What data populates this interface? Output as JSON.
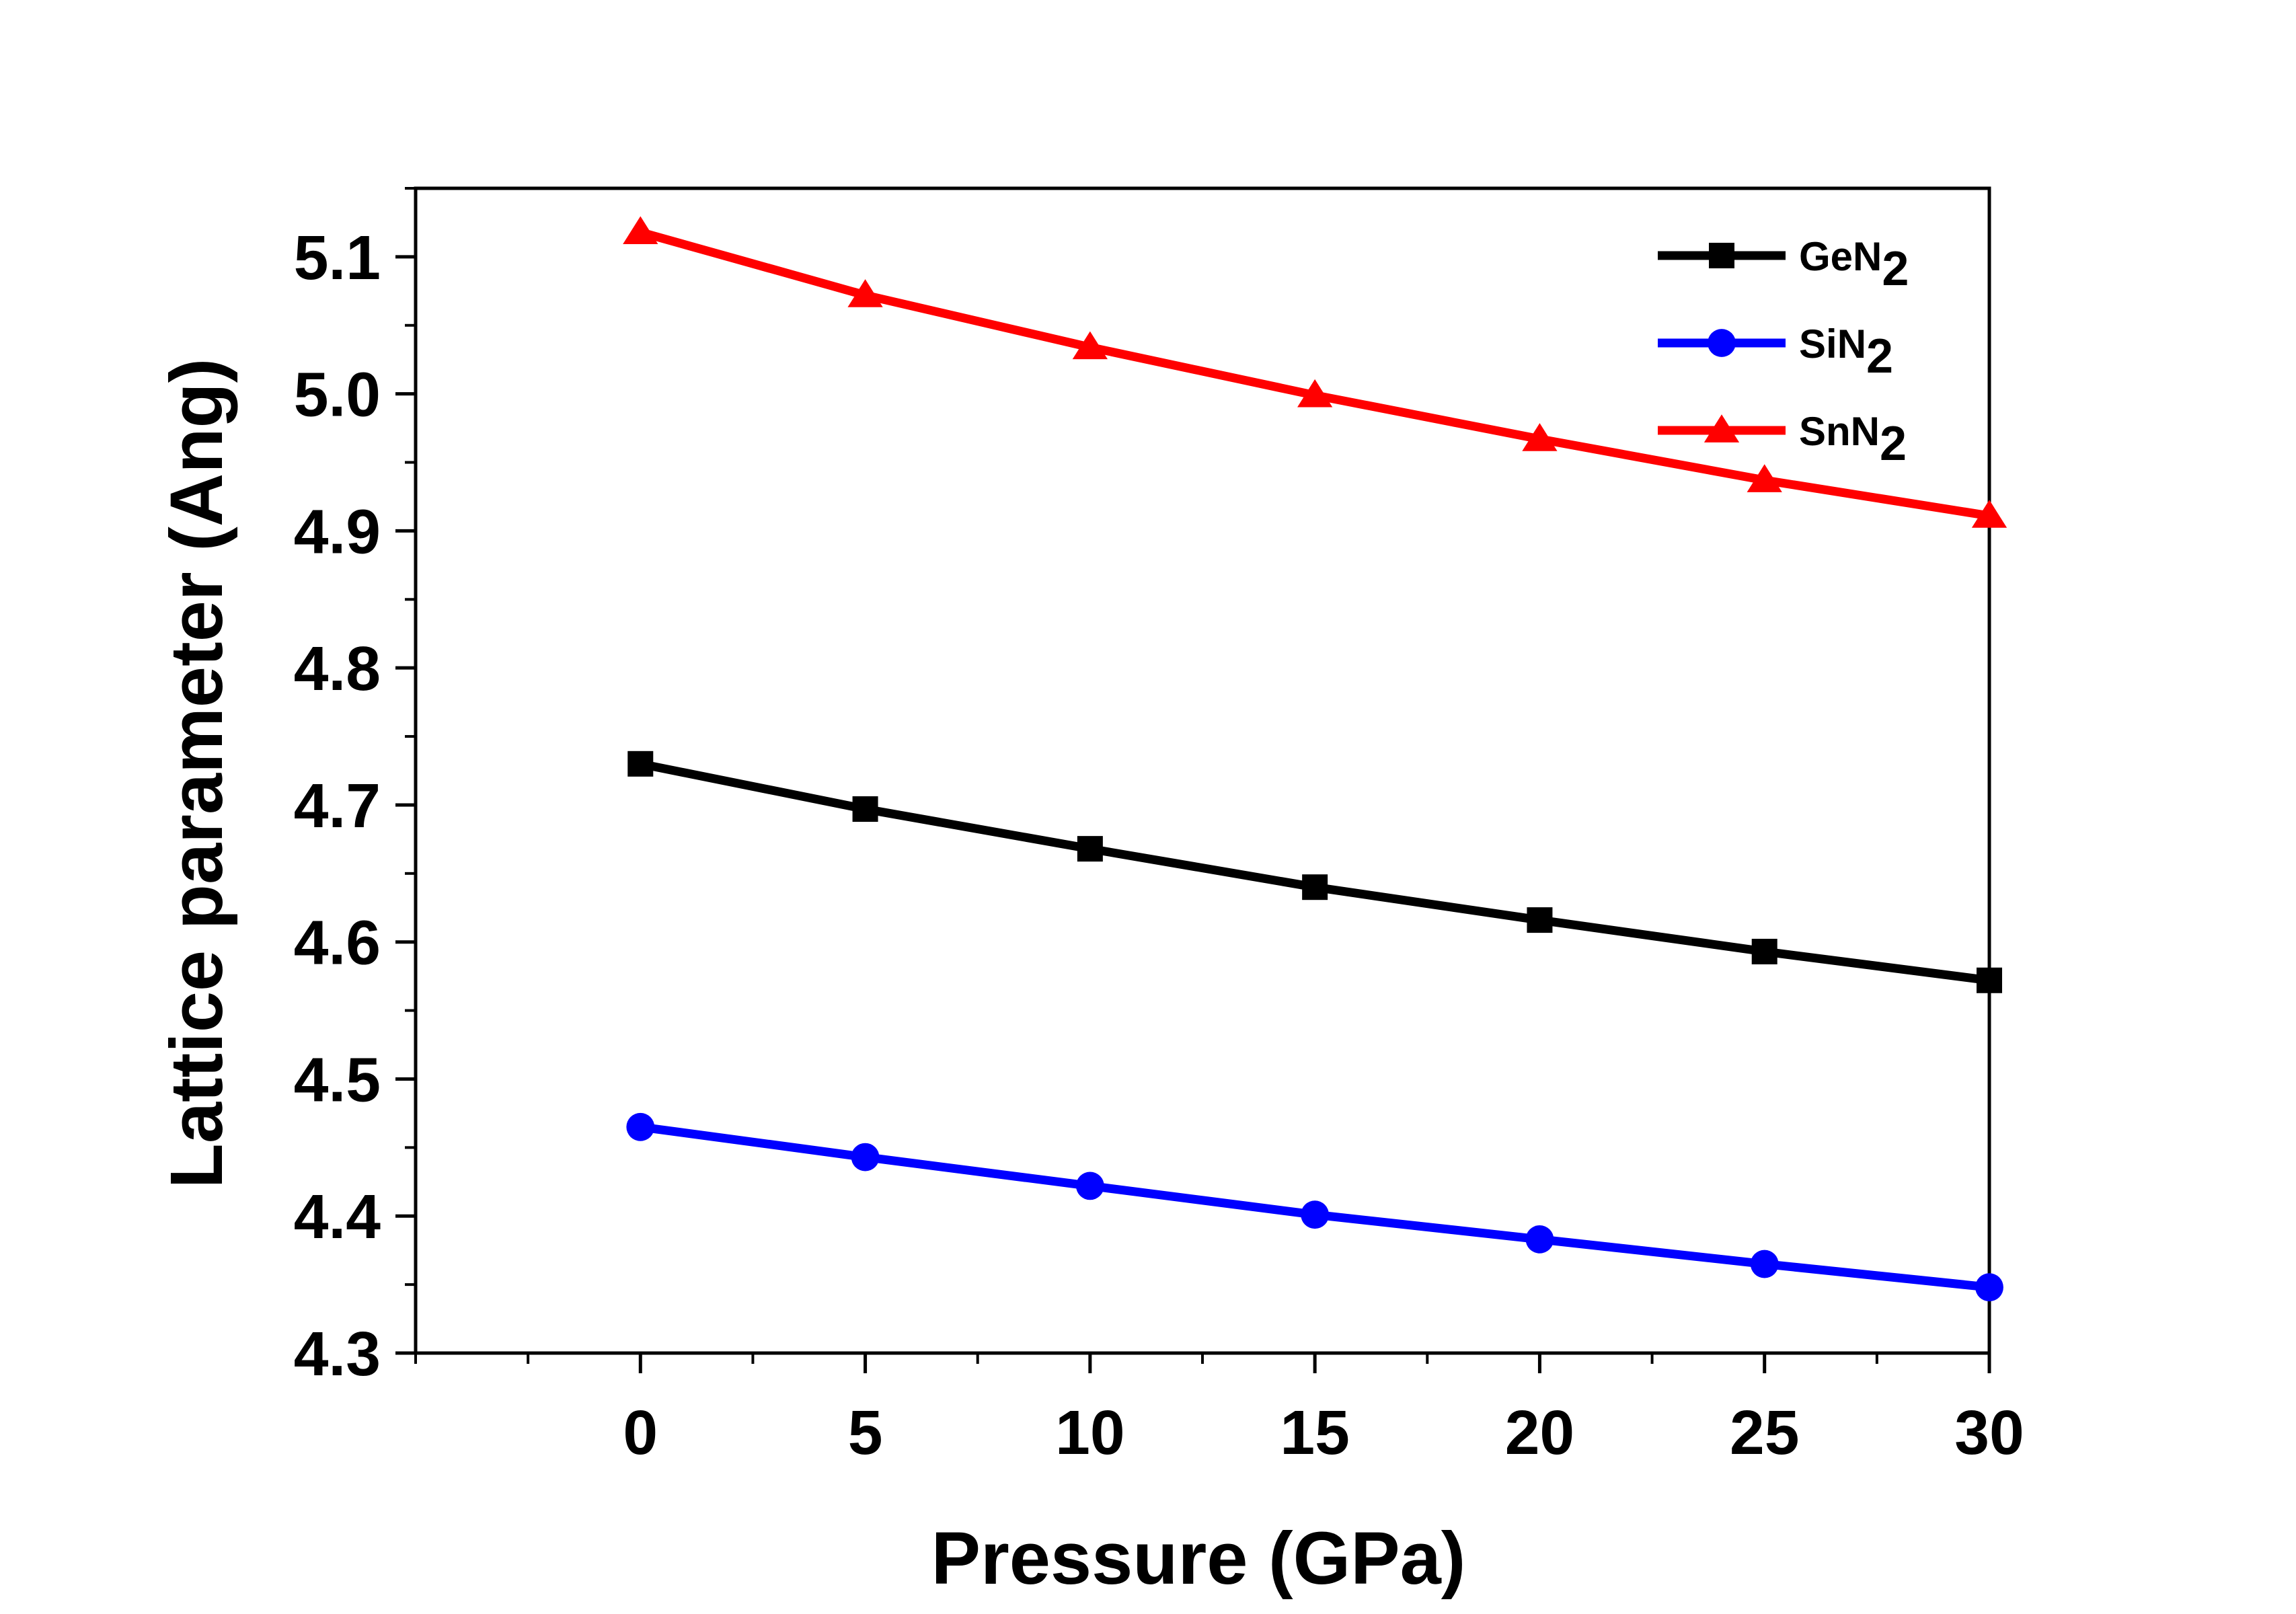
{
  "chart_data": {
    "type": "line",
    "title": "",
    "xlabel": "Pressure (GPa)",
    "ylabel": "Lattice parameter (Ang)",
    "xlim": [
      -5,
      30
    ],
    "ylim": [
      4.3,
      5.15
    ],
    "x": [
      0,
      5,
      10,
      15,
      20,
      25,
      30
    ],
    "xticks": [
      0,
      5,
      10,
      15,
      20,
      25,
      30
    ],
    "xtick_labels": [
      "0",
      "5",
      "10",
      "15",
      "20",
      "25",
      "30"
    ],
    "yticks": [
      4.3,
      4.4,
      4.5,
      4.6,
      4.7,
      4.8,
      4.9,
      5.0,
      5.1
    ],
    "ytick_labels": [
      "4.3",
      "4.4",
      "4.5",
      "4.6",
      "4.7",
      "4.8",
      "4.9",
      "5.0",
      "5.1"
    ],
    "grid": false,
    "legend_position": "top-right",
    "series": [
      {
        "name": "GeN",
        "name_sub": "2",
        "color": "#000000",
        "marker": "square",
        "values": [
          4.73,
          4.697,
          4.668,
          4.64,
          4.616,
          4.593,
          4.572
        ]
      },
      {
        "name": "SiN",
        "name_sub": "2",
        "color": "#0000ff",
        "marker": "circle",
        "values": [
          4.465,
          4.443,
          4.422,
          4.401,
          4.383,
          4.365,
          4.348
        ]
      },
      {
        "name": "SnN",
        "name_sub": "2",
        "color": "#ff0000",
        "marker": "triangle",
        "values": [
          5.118,
          5.072,
          5.034,
          4.999,
          4.967,
          4.937,
          4.911
        ]
      }
    ]
  }
}
